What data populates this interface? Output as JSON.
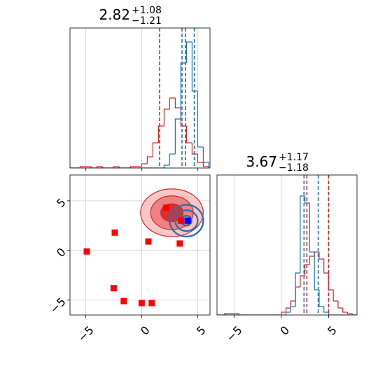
{
  "chart_data": [
    {
      "type": "histogram",
      "title": {
        "value": "2.82",
        "upper": "+1.08",
        "lower": "−1.21"
      },
      "bins": [
        -6.5,
        -6,
        -5.5,
        -5,
        -4.5,
        -4,
        -3.5,
        -3,
        -2.5,
        -2,
        -1.5,
        -1,
        -0.5,
        0,
        0.5,
        1,
        1.5,
        2,
        2.5,
        3,
        3.5,
        4,
        4.5,
        5,
        5.5,
        6
      ],
      "series": [
        {
          "color": "#d62728",
          "values": [
            0,
            0,
            0.01,
            0.01,
            0,
            0.01,
            0,
            0,
            0.01,
            0,
            0,
            0.01,
            0.01,
            0.03,
            0.08,
            0.18,
            0.3,
            0.42,
            0.5,
            0.43,
            0.3,
            0.18,
            0.1,
            0.04,
            0.01
          ]
        },
        {
          "color": "#1f77b4",
          "values": [
            0,
            0,
            0,
            0,
            0,
            0,
            0,
            0,
            0,
            0,
            0,
            0,
            0,
            0,
            0,
            0,
            0,
            0.02,
            0.1,
            0.35,
            0.75,
            0.9,
            0.55,
            0.15,
            0.04
          ]
        }
      ],
      "quantiles": [
        {
          "color": "#d62728",
          "values": [
            1.6,
            3.9
          ]
        },
        {
          "color": "#1f77b4",
          "values": [
            3.6,
            4.7
          ]
        }
      ],
      "xlim": [
        -6.4,
        6.1
      ],
      "ylim": [
        0,
        1
      ],
      "xticks": [
        -5,
        0,
        5
      ],
      "grid": true
    },
    {
      "type": "scatter",
      "contours": [
        {
          "color": "#d62728",
          "filled": true,
          "cx": 2.7,
          "cy": 3.8,
          "rx": [
            2.8,
            1.9,
            1.0
          ],
          "ry": [
            2.4,
            1.7,
            0.9
          ]
        },
        {
          "color": "#2f6fb0",
          "filled": false,
          "cx": 4.0,
          "cy": 3.0,
          "rx": [
            1.5,
            1.0,
            0.45
          ],
          "ry": [
            1.6,
            1.05,
            0.5
          ]
        }
      ],
      "series": [
        {
          "color": "#ff0000",
          "x": [
            -4.9,
            -2.4,
            0.6,
            2.2,
            3.5,
            3.4,
            -2.5,
            -1.6,
            0,
            0.9
          ],
          "values": [
            -0.1,
            1.8,
            0.9,
            4.3,
            3.0,
            0.7,
            -3.8,
            -5.1,
            -5.3,
            -5.3
          ]
        },
        {
          "color": "#0000ff",
          "x": [
            4.1
          ],
          "values": [
            3.0
          ]
        }
      ],
      "xlim": [
        -6.4,
        6.1
      ],
      "ylim": [
        -6.5,
        7.6
      ],
      "xticks": [
        {
          "value": -5,
          "label": "−5"
        },
        0,
        5
      ],
      "yticks": [
        {
          "value": -5,
          "label": "−5"
        },
        0,
        5
      ],
      "grid": true
    },
    {
      "type": "histogram",
      "title": {
        "value": "3.67",
        "upper": "+1.17",
        "lower": "−1.18"
      },
      "bins": [
        -7,
        -6.5,
        -6,
        -5.5,
        -5,
        -4.5,
        -4,
        -3.5,
        -3,
        -2.5,
        -2,
        -1.5,
        -1,
        -0.5,
        0,
        0.5,
        1,
        1.5,
        2,
        2.5,
        3,
        3.5,
        4,
        4.5,
        5,
        5.5,
        6,
        6.5,
        7,
        7.5,
        8
      ],
      "series": [
        {
          "color": "#d62728",
          "values": [
            0,
            0,
            0.01,
            0.01,
            0.01,
            0,
            0,
            0,
            0,
            0,
            0,
            0,
            0,
            0,
            0.02,
            0.05,
            0.1,
            0.2,
            0.28,
            0.36,
            0.42,
            0.45,
            0.4,
            0.3,
            0.18,
            0.1,
            0.05,
            0.02,
            0.01,
            0
          ]
        },
        {
          "color": "#1f77b4",
          "values": [
            0,
            0,
            0,
            0,
            0,
            0,
            0,
            0,
            0,
            0,
            0,
            0,
            0,
            0,
            0,
            0.02,
            0.06,
            0.3,
            0.85,
            0.8,
            0.45,
            0.18,
            0.06,
            0.02,
            0,
            0,
            0,
            0,
            0,
            0
          ]
        }
      ],
      "quantiles": [
        {
          "color": "#1f77b4",
          "values": [
            2.4,
            3.9
          ]
        },
        {
          "color": "#d62728",
          "values": [
            2.7,
            5.0
          ]
        }
      ],
      "xlim": [
        -6.8,
        8.0
      ],
      "ylim": [
        0,
        1
      ],
      "xticks": [
        {
          "value": -5,
          "label": "−5"
        },
        0,
        5
      ],
      "grid": true
    }
  ]
}
